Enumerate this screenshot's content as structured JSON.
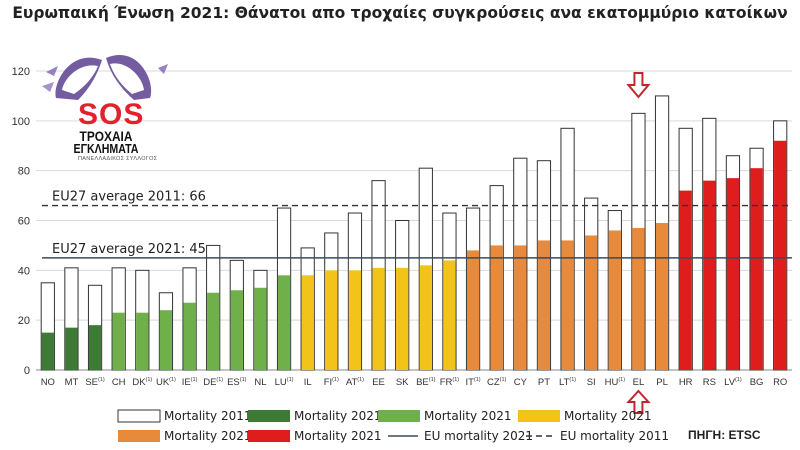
{
  "title": "Ευρωπαική Ένωση 2021: Θάνατοι απο τροχαίες συγκρούσεις ανα εκατομμύριο κατοίκων",
  "source_label": "ΠΗΓΗ: ETSC",
  "logo": {
    "text_sos": "SOS",
    "text_line1": "ΤΡΟΧΑΙΑ",
    "text_line2": "ΕΓΚΛΗΜΑΤΑ",
    "text_line3": "ΠΑΝΕΛΛΑΔΙΚΟΣ ΣΥΛΛΟΓΟΣ"
  },
  "colors": {
    "outline_2011": "#333333",
    "dark_green": "#3d7a35",
    "light_green": "#6fb04a",
    "yellow": "#f2c318",
    "orange": "#e88a3c",
    "red": "#e01d1d",
    "eu_2021_line": "#3a4a5c",
    "eu_2011_line": "#333333",
    "arrow": "#c0272d"
  },
  "chart_data": {
    "type": "bar",
    "ylim": [
      0,
      120
    ],
    "yticks": [
      0,
      20,
      40,
      60,
      80,
      100,
      120
    ],
    "grid": true,
    "categories": [
      "NO",
      "MT",
      "SE",
      "CH",
      "DK",
      "UK",
      "IE",
      "DE",
      "ES",
      "NL",
      "LU",
      "IL",
      "FI",
      "AT",
      "EE",
      "SK",
      "BE",
      "FR",
      "IT",
      "CZ",
      "CY",
      "PT",
      "LT",
      "SI",
      "HU",
      "EL",
      "PL",
      "HR",
      "RS",
      "LV",
      "BG",
      "RO"
    ],
    "category_superscripts": [
      "",
      "",
      "(1)",
      "",
      "(1)",
      "(1)",
      "(1)",
      "(1)",
      "(1)",
      "",
      "(1)",
      "",
      "(1)",
      "(1)",
      "",
      "",
      "(1)",
      "(1)",
      "(1)",
      "(1)",
      "",
      "",
      "(1)",
      "",
      "(1)",
      "",
      "",
      "",
      "",
      "(1)",
      "",
      ""
    ],
    "series": [
      {
        "name": "Mortality 2011",
        "style": "outline",
        "values": [
          35,
          41,
          34,
          41,
          40,
          31,
          41,
          50,
          44,
          40,
          65,
          49,
          55,
          63,
          76,
          60,
          81,
          63,
          65,
          74,
          85,
          84,
          97,
          69,
          64,
          103,
          110,
          97,
          101,
          86,
          89,
          100
        ]
      },
      {
        "name": "Mortality 2021",
        "style": "filled",
        "values": [
          15,
          17,
          18,
          23,
          23,
          24,
          27,
          31,
          32,
          33,
          38,
          38,
          40,
          40,
          41,
          41,
          42,
          44,
          48,
          50,
          50,
          52,
          52,
          54,
          56,
          57,
          59,
          72,
          76,
          77,
          81,
          92
        ],
        "color_groups": [
          "dark_green",
          "dark_green",
          "dark_green",
          "light_green",
          "light_green",
          "light_green",
          "light_green",
          "light_green",
          "light_green",
          "light_green",
          "light_green",
          "yellow",
          "yellow",
          "yellow",
          "yellow",
          "yellow",
          "yellow",
          "yellow",
          "orange",
          "orange",
          "orange",
          "orange",
          "orange",
          "orange",
          "orange",
          "orange",
          "orange",
          "red",
          "red",
          "red",
          "red",
          "red"
        ]
      }
    ],
    "reference_lines": [
      {
        "name": "EU mortality 2021",
        "label": "EU27 average 2021: 45",
        "value": 45,
        "style": "solid"
      },
      {
        "name": "EU mortality 2011",
        "label": "EU27 average 2011: 66",
        "value": 66,
        "style": "dashed"
      }
    ],
    "highlight_category": "EL",
    "legend": {
      "placement": "bottom",
      "rows": [
        [
          {
            "label": "Mortality 2011",
            "kind": "outline"
          },
          {
            "label": "Mortality 2021",
            "kind": "dark_green"
          },
          {
            "label": "Mortality 2021",
            "kind": "light_green"
          },
          {
            "label": "Mortality 2021",
            "kind": "yellow"
          }
        ],
        [
          {
            "label": "Mortality 2021",
            "kind": "orange"
          },
          {
            "label": "Mortality 2021",
            "kind": "red"
          },
          {
            "label": "EU mortality 2021",
            "kind": "line_solid"
          },
          {
            "label": "EU mortality 2011",
            "kind": "line_dashed"
          }
        ]
      ]
    }
  }
}
